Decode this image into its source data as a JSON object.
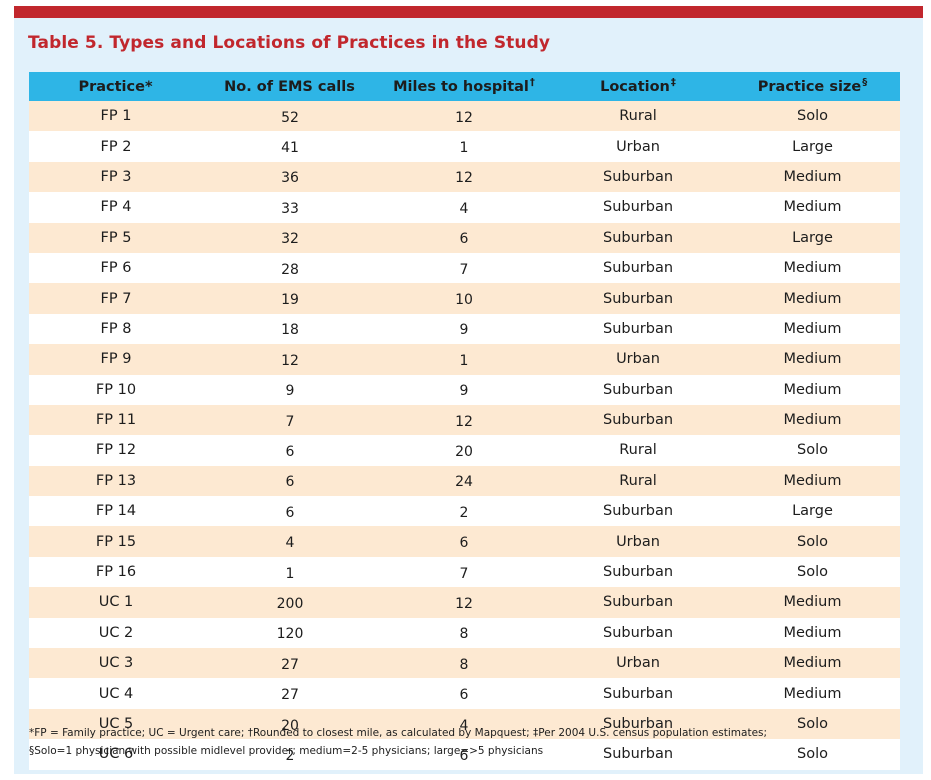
{
  "title": "Table 5. Types and Locations of Practices in the Study",
  "columns": [
    {
      "label": "Practice*",
      "mark": ""
    },
    {
      "label": "No. of EMS calls",
      "mark": ""
    },
    {
      "label": "Miles to hospital",
      "mark": "†"
    },
    {
      "label": "Location",
      "mark": "‡"
    },
    {
      "label": "Practice size",
      "mark": "§"
    }
  ],
  "rows": [
    {
      "practice": "FP 1",
      "ems_calls": "52",
      "miles": "12",
      "location": "Rural",
      "size": "Solo"
    },
    {
      "practice": "FP 2",
      "ems_calls": "41",
      "miles": "1",
      "location": "Urban",
      "size": "Large"
    },
    {
      "practice": "FP 3",
      "ems_calls": "36",
      "miles": "12",
      "location": "Suburban",
      "size": "Medium"
    },
    {
      "practice": "FP 4",
      "ems_calls": "33",
      "miles": "4",
      "location": "Suburban",
      "size": "Medium"
    },
    {
      "practice": "FP 5",
      "ems_calls": "32",
      "miles": "6",
      "location": "Suburban",
      "size": "Large"
    },
    {
      "practice": "FP 6",
      "ems_calls": "28",
      "miles": "7",
      "location": "Suburban",
      "size": "Medium"
    },
    {
      "practice": "FP 7",
      "ems_calls": "19",
      "miles": "10",
      "location": "Suburban",
      "size": "Medium"
    },
    {
      "practice": "FP 8",
      "ems_calls": "18",
      "miles": "9",
      "location": "Suburban",
      "size": "Medium"
    },
    {
      "practice": "FP 9",
      "ems_calls": "12",
      "miles": "1",
      "location": "Urban",
      "size": "Medium"
    },
    {
      "practice": "FP 10",
      "ems_calls": "9",
      "miles": "9",
      "location": "Suburban",
      "size": "Medium"
    },
    {
      "practice": "FP 11",
      "ems_calls": "7",
      "miles": "12",
      "location": "Suburban",
      "size": "Medium"
    },
    {
      "practice": "FP 12",
      "ems_calls": "6",
      "miles": "20",
      "location": "Rural",
      "size": "Solo"
    },
    {
      "practice": "FP 13",
      "ems_calls": "6",
      "miles": "24",
      "location": "Rural",
      "size": "Medium"
    },
    {
      "practice": "FP 14",
      "ems_calls": "6",
      "miles": "2",
      "location": "Suburban",
      "size": "Large"
    },
    {
      "practice": "FP 15",
      "ems_calls": "4",
      "miles": "6",
      "location": "Urban",
      "size": "Solo"
    },
    {
      "practice": "FP 16",
      "ems_calls": "1",
      "miles": "7",
      "location": "Suburban",
      "size": "Solo"
    },
    {
      "practice": "UC 1",
      "ems_calls": "200",
      "miles": "12",
      "location": "Suburban",
      "size": "Medium"
    },
    {
      "practice": "UC 2",
      "ems_calls": "120",
      "miles": "8",
      "location": "Suburban",
      "size": "Medium"
    },
    {
      "practice": "UC 3",
      "ems_calls": "27",
      "miles": "8",
      "location": "Urban",
      "size": "Medium"
    },
    {
      "practice": "UC 4",
      "ems_calls": "27",
      "miles": "6",
      "location": "Suburban",
      "size": "Medium"
    },
    {
      "practice": "UC 5",
      "ems_calls": "20",
      "miles": "4",
      "location": "Suburban",
      "size": "Solo"
    },
    {
      "practice": "UC 6",
      "ems_calls": "2",
      "miles": "6",
      "location": "Suburban",
      "size": "Solo"
    }
  ],
  "footnotes": [
    "*FP = Family practice; UC = Urgent care; †Rounded to closest mile, as calculated by Mapquest; ‡Per 2004 U.S. census population estimates;",
    "§Solo=1 physician with possible midlevel provider; medium=2-5 physicians; large=>5 physicians"
  ],
  "colors": {
    "accent_red": "#c1272d",
    "header_blue": "#2eb5e6",
    "panel_bg": "#e1f1fb",
    "row_stripe": "#fde9d2"
  }
}
